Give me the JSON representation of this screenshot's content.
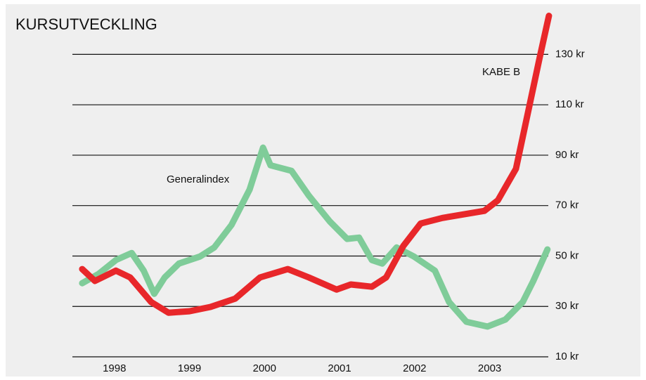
{
  "chart_data": {
    "type": "line",
    "title": "KURSUTVECKLING",
    "annotations": [
      "KABE B",
      "Generalindex"
    ],
    "xlim": [
      1997.44,
      2003.8
    ],
    "xticks": [
      1998,
      1999,
      2000,
      2001,
      2002,
      2003
    ],
    "ylim": [
      10,
      146
    ],
    "yticks": [
      {
        "value": 10,
        "label": "10 kr"
      },
      {
        "value": 30,
        "label": "30 kr"
      },
      {
        "value": 50,
        "label": "50 kr"
      },
      {
        "value": 70,
        "label": "70 kr"
      },
      {
        "value": 90,
        "label": "90 kr"
      },
      {
        "value": 110,
        "label": "110 kr"
      },
      {
        "value": 130,
        "label": "130 kr"
      }
    ],
    "grid": true,
    "series": [
      {
        "name": "Generalindex",
        "color": "#7fcc99",
        "x": [
          1997.57,
          1997.79,
          1998.02,
          1998.23,
          1998.39,
          1998.53,
          1998.67,
          1998.86,
          1999.14,
          1999.33,
          1999.56,
          1999.8,
          1999.98,
          2000.08,
          2000.36,
          2000.59,
          2000.87,
          2001.1,
          2001.26,
          2001.43,
          2001.57,
          2001.76,
          2001.99,
          2002.27,
          2002.46,
          2002.69,
          2002.97,
          2003.21,
          2003.44,
          2003.58,
          2003.77
        ],
        "values": [
          39.2,
          42.9,
          48.4,
          51.2,
          44.2,
          35,
          41.5,
          47,
          49.8,
          53.4,
          62.3,
          76.3,
          93,
          86,
          83.8,
          74,
          63.7,
          56.8,
          57.3,
          48.4,
          47,
          53.4,
          49.8,
          44.2,
          31.7,
          23.9,
          22,
          24.8,
          31.7,
          40,
          52.6
        ]
      },
      {
        "name": "KABE B",
        "color": "#e8272a",
        "x": [
          1997.57,
          1997.74,
          1998.02,
          1998.21,
          1998.49,
          1998.72,
          1999.0,
          1999.28,
          1999.61,
          1999.94,
          2000.31,
          2000.59,
          2000.96,
          2001.15,
          2001.43,
          2001.62,
          2001.85,
          2002.08,
          2002.37,
          2002.93,
          2003.11,
          2003.35,
          2003.53,
          2003.67,
          2003.79
        ],
        "values": [
          44.8,
          40.1,
          44.2,
          41.5,
          31.7,
          27.5,
          28.1,
          29.8,
          33.1,
          41.5,
          44.8,
          41.5,
          36.7,
          38.7,
          37.8,
          41.5,
          54,
          62.9,
          65.1,
          67.9,
          72.1,
          84.6,
          109.7,
          129.2,
          145.3
        ]
      }
    ]
  }
}
